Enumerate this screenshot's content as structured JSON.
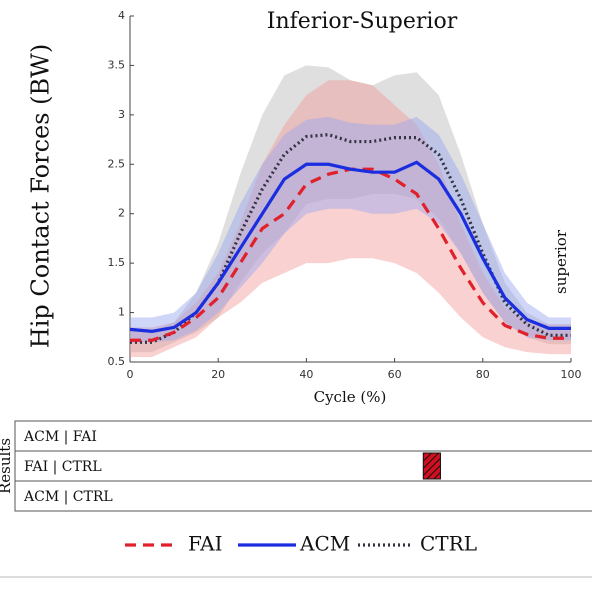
{
  "chart_data": {
    "type": "line",
    "title": "Inferior-Superior",
    "y_label": "Hip Contact Forces (BW)",
    "x_label": "Cycle (%)",
    "annotation": "superior",
    "x": [
      0,
      5,
      10,
      15,
      20,
      25,
      30,
      35,
      40,
      45,
      50,
      55,
      60,
      65,
      70,
      75,
      80,
      85,
      90,
      95,
      100
    ],
    "xlim": [
      0,
      100
    ],
    "xticks": [
      0,
      20,
      40,
      60,
      80,
      100
    ],
    "ylim": [
      0.5,
      4
    ],
    "yticks": [
      0.5,
      1,
      1.5,
      2,
      2.5,
      3,
      3.5,
      4
    ],
    "series": [
      {
        "name": "FAI",
        "color": "#e0202a",
        "band_color": "#f49a9a",
        "values": [
          0.72,
          0.72,
          0.8,
          0.95,
          1.15,
          1.5,
          1.85,
          2.0,
          2.3,
          2.4,
          2.45,
          2.45,
          2.35,
          2.2,
          1.85,
          1.45,
          1.1,
          0.87,
          0.78,
          0.74,
          0.74
        ],
        "upper": [
          0.85,
          0.85,
          0.9,
          1.1,
          1.4,
          1.9,
          2.5,
          2.9,
          3.2,
          3.35,
          3.35,
          3.3,
          3.1,
          2.9,
          2.5,
          1.9,
          1.4,
          1.05,
          0.92,
          0.88,
          0.88
        ],
        "lower": [
          0.55,
          0.55,
          0.65,
          0.75,
          0.95,
          1.1,
          1.3,
          1.4,
          1.5,
          1.5,
          1.55,
          1.55,
          1.5,
          1.4,
          1.2,
          0.95,
          0.75,
          0.65,
          0.6,
          0.58,
          0.58
        ]
      },
      {
        "name": "ACM",
        "color": "#1a2ee0",
        "band_color": "#97a5ee",
        "values": [
          0.83,
          0.81,
          0.85,
          1.0,
          1.3,
          1.65,
          2.0,
          2.35,
          2.5,
          2.5,
          2.45,
          2.42,
          2.42,
          2.52,
          2.35,
          2.0,
          1.55,
          1.15,
          0.93,
          0.84,
          0.84
        ],
        "upper": [
          0.95,
          0.95,
          1.0,
          1.2,
          1.6,
          2.1,
          2.5,
          2.8,
          2.95,
          2.98,
          2.92,
          2.9,
          2.9,
          2.98,
          2.8,
          2.4,
          1.9,
          1.4,
          1.1,
          0.95,
          0.95
        ],
        "lower": [
          0.7,
          0.7,
          0.72,
          0.82,
          1.0,
          1.25,
          1.5,
          1.8,
          2.0,
          2.05,
          2.05,
          2.0,
          2.0,
          2.05,
          1.9,
          1.6,
          1.2,
          0.9,
          0.75,
          0.72,
          0.72
        ]
      },
      {
        "name": "CTRL",
        "color": "#333344",
        "band_color": "#b8b8b8",
        "values": [
          0.7,
          0.7,
          0.8,
          1.0,
          1.3,
          1.8,
          2.25,
          2.6,
          2.78,
          2.8,
          2.73,
          2.73,
          2.77,
          2.77,
          2.6,
          2.15,
          1.6,
          1.1,
          0.88,
          0.77,
          0.77
        ],
        "upper": [
          0.82,
          0.82,
          0.9,
          1.2,
          1.7,
          2.4,
          3.0,
          3.4,
          3.5,
          3.48,
          3.35,
          3.3,
          3.4,
          3.43,
          3.2,
          2.6,
          1.9,
          1.3,
          1.0,
          0.88,
          0.88
        ],
        "lower": [
          0.6,
          0.6,
          0.7,
          0.8,
          0.95,
          1.3,
          1.6,
          1.8,
          2.1,
          2.15,
          2.15,
          2.2,
          2.2,
          2.15,
          1.95,
          1.6,
          1.2,
          0.9,
          0.75,
          0.68,
          0.68
        ]
      }
    ],
    "results_label": "Results",
    "results_rows": [
      "ACM | FAI",
      "FAI | CTRL",
      "ACM | CTRL"
    ],
    "significance": [
      {
        "row": 1,
        "start": 66.5,
        "end": 70.4
      }
    ]
  }
}
